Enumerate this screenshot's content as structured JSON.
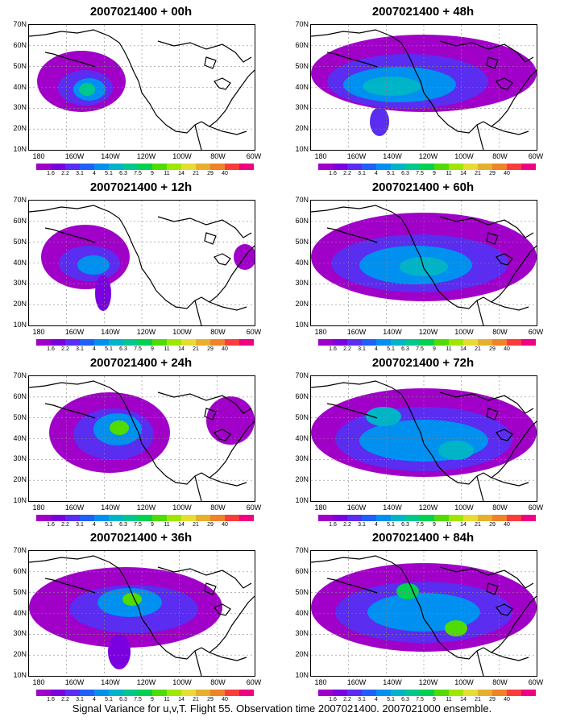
{
  "caption": "Signal Variance for u,v,T. Flight 55. Observation time 2007021400. 2007021000 ensemble.",
  "y_labels": [
    "70N",
    "60N",
    "50N",
    "40N",
    "30N",
    "20N",
    "10N"
  ],
  "x_labels": [
    "180",
    "160W",
    "140W",
    "120W",
    "100W",
    "80W",
    "60W"
  ],
  "colorbar": {
    "labels": [
      "1.6",
      "2.2",
      "3.1",
      "4",
      "5.1",
      "6.3",
      "7.5",
      "9",
      "11",
      "14",
      "21",
      "29",
      "40"
    ],
    "colors": [
      "#a000c8",
      "#7a00e0",
      "#5a2df0",
      "#2060f8",
      "#0090f0",
      "#00b4c8",
      "#00c88c",
      "#00d250",
      "#50dc00",
      "#a0e600",
      "#e6dc32",
      "#e6af2d",
      "#f08228",
      "#fa3c3c",
      "#f00082"
    ]
  },
  "panels": [
    {
      "title": "2007021400 + 00h"
    },
    {
      "title": "2007021400 + 48h"
    },
    {
      "title": "2007021400 + 12h"
    },
    {
      "title": "2007021400 + 60h"
    },
    {
      "title": "2007021400 + 24h"
    },
    {
      "title": "2007021400 + 72h"
    },
    {
      "title": "2007021400 + 36h"
    },
    {
      "title": "2007021400 + 84h"
    }
  ]
}
